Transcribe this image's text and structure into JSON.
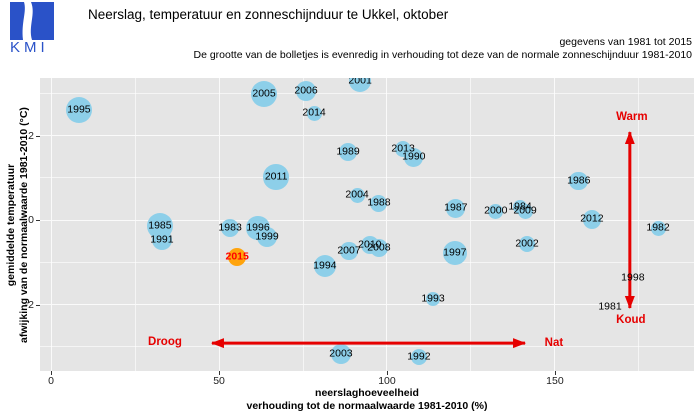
{
  "header": {
    "logo_text": "KMI",
    "title": "Neerslag, temperatuur en zonneschijnduur te Ukkel, oktober",
    "subtitle1": "gegevens van 1981 tot 2015",
    "subtitle2": "De grootte van de bolletjes is evenredig in verhouding tot deze van de normale zonneschijnduur 1981-2010"
  },
  "colors": {
    "bubble": "#8dcfe9",
    "highlight_bubble": "#ffa40d",
    "annotation_red": "#e60000",
    "highlight_label": "#ff0000",
    "panel_bg": "#e5e5e5",
    "logo_blue": "#2a52c8"
  },
  "chart_data": {
    "type": "scatter",
    "title": "Neerslag, temperatuur en zonneschijnduur te Ukkel, oktober",
    "xlabel_line1": "neerslaghoeveelheid",
    "xlabel_line2": "verhouding tot de normaalwaarde 1981-2010 (%)",
    "ylabel_line1": "gemiddelde temperatuur",
    "ylabel_line2": "afwijking van de normaalwaarde 1981-2010 (°C)",
    "x_ticks": [
      0,
      50,
      100,
      150
    ],
    "y_ticks": [
      2,
      0,
      -2
    ],
    "xlim": [
      -3.3,
      191.4
    ],
    "ylim": [
      -3.57,
      3.36
    ],
    "x_minor_step": 25,
    "y_minor_step": 1,
    "grid": true,
    "bubble_note": "radius r is proportional to normal sunshine duration 1981-2010; r in px, 0 = not visible",
    "points": [
      {
        "year": 1981,
        "x": 166.4,
        "y": -2.06,
        "r": 0
      },
      {
        "year": 1982,
        "x": 180.7,
        "y": -0.19,
        "r": 7.5
      },
      {
        "year": 1983,
        "x": 53.3,
        "y": -0.19,
        "r": 9.3
      },
      {
        "year": 1984,
        "x": 139.6,
        "y": 0.31,
        "r": 7.0
      },
      {
        "year": 1985,
        "x": 32.4,
        "y": -0.14,
        "r": 13.3
      },
      {
        "year": 1986,
        "x": 157.1,
        "y": 0.92,
        "r": 9.3
      },
      {
        "year": 1987,
        "x": 120.5,
        "y": 0.28,
        "r": 9.5
      },
      {
        "year": 1988,
        "x": 97.6,
        "y": 0.4,
        "r": 8.5
      },
      {
        "year": 1989,
        "x": 88.4,
        "y": 1.61,
        "r": 9.0
      },
      {
        "year": 1990,
        "x": 108.0,
        "y": 1.49,
        "r": 9.5
      },
      {
        "year": 1991,
        "x": 33.0,
        "y": -0.47,
        "r": 10.0
      },
      {
        "year": 1992,
        "x": 109.5,
        "y": -3.24,
        "r": 8.0
      },
      {
        "year": 1993,
        "x": 113.7,
        "y": -1.87,
        "r": 7.0
      },
      {
        "year": 1994,
        "x": 81.5,
        "y": -1.09,
        "r": 11.0
      },
      {
        "year": 1995,
        "x": 8.3,
        "y": 2.6,
        "r": 13.3
      },
      {
        "year": 1996,
        "x": 61.6,
        "y": -0.19,
        "r": 11.7
      },
      {
        "year": 1997,
        "x": 120.2,
        "y": -0.78,
        "r": 12.3
      },
      {
        "year": 1998,
        "x": 173.2,
        "y": -1.37,
        "r": 0
      },
      {
        "year": 1999,
        "x": 64.3,
        "y": -0.4,
        "r": 10.0
      },
      {
        "year": 2000,
        "x": 132.4,
        "y": 0.21,
        "r": 7.5
      },
      {
        "year": 2001,
        "x": 92.0,
        "y": 3.29,
        "r": 11.0
      },
      {
        "year": 2002,
        "x": 141.7,
        "y": -0.57,
        "r": 8.0
      },
      {
        "year": 2003,
        "x": 86.3,
        "y": -3.17,
        "r": 10.0
      },
      {
        "year": 2004,
        "x": 91.1,
        "y": 0.59,
        "r": 7.5
      },
      {
        "year": 2005,
        "x": 63.4,
        "y": 2.98,
        "r": 13.3
      },
      {
        "year": 2006,
        "x": 75.9,
        "y": 3.05,
        "r": 10.0
      },
      {
        "year": 2007,
        "x": 88.7,
        "y": -0.73,
        "r": 8.7
      },
      {
        "year": 2008,
        "x": 97.6,
        "y": -0.66,
        "r": 9.0
      },
      {
        "year": 2009,
        "x": 141.1,
        "y": 0.21,
        "r": 7.5
      },
      {
        "year": 2010,
        "x": 94.9,
        "y": -0.59,
        "r": 9.0
      },
      {
        "year": 2011,
        "x": 67.0,
        "y": 1.02,
        "r": 12.7
      },
      {
        "year": 2012,
        "x": 161.0,
        "y": 0.02,
        "r": 9.3
      },
      {
        "year": 2013,
        "x": 104.8,
        "y": 1.68,
        "r": 8.0
      },
      {
        "year": 2014,
        "x": 78.3,
        "y": 2.53,
        "r": 7.5
      },
      {
        "year": 2015,
        "x": 55.4,
        "y": -0.87,
        "r": 9.3,
        "highlight": true
      }
    ],
    "annotations": {
      "warm": {
        "label": "Warm",
        "x": 172.9,
        "y": 2.44
      },
      "koud": {
        "label": "Koud",
        "x": 172.6,
        "y": -2.36
      },
      "droog": {
        "label": "Droog",
        "x": 33.9,
        "y": -2.88
      },
      "nat": {
        "label": "Nat",
        "x": 149.7,
        "y": -2.91
      },
      "v_arrow": {
        "x": 172.3,
        "y1": 2.08,
        "y2": -2.08
      },
      "h_arrow": {
        "y": -2.91,
        "x1": 47.9,
        "x2": 141.1
      }
    }
  }
}
